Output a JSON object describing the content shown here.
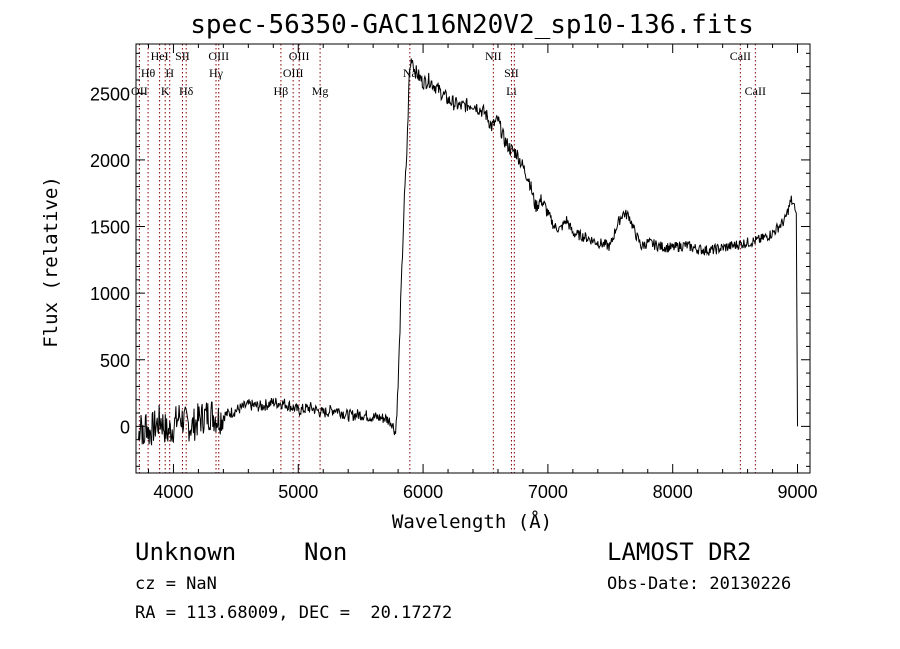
{
  "chart_data": {
    "type": "line",
    "title": "spec-56350-GAC116N20V2_sp10-136.fits",
    "xlabel": "Wavelength (Å)",
    "ylabel": "Flux (relative)",
    "xlim": [
      3700,
      9100
    ],
    "ylim": [
      -350,
      2870
    ],
    "x_ticks": [
      4000,
      5000,
      6000,
      7000,
      8000,
      9000
    ],
    "x_tick_labels": [
      "4000",
      "5000",
      "6000",
      "7000",
      "8000",
      "9000"
    ],
    "y_ticks": [
      0,
      500,
      1000,
      1500,
      2000,
      2500
    ],
    "y_tick_labels": [
      "0",
      "500",
      "1000",
      "1500",
      "2000",
      "2500"
    ],
    "grid": false,
    "legend": "none",
    "line_color": "#000000",
    "marker_color": "#8b0000",
    "series": [
      {
        "x": [
          3720,
          3740,
          3760,
          3780,
          3800,
          3850,
          3900,
          3950,
          4000,
          4050,
          4100,
          4150,
          4200,
          4300,
          4350,
          4400,
          4500,
          4600,
          4700,
          4800,
          4900,
          5000,
          5100,
          5200,
          5300,
          5400,
          5500,
          5600,
          5700,
          5750,
          5780,
          5800,
          5820,
          5850,
          5870,
          5890,
          5910,
          5930,
          5950,
          6000,
          6050,
          6100,
          6150,
          6200,
          6300,
          6400,
          6500,
          6550,
          6600,
          6650,
          6700,
          6750,
          6800,
          6850,
          6900,
          6950,
          7000,
          7050,
          7100,
          7150,
          7200,
          7300,
          7400,
          7500,
          7550,
          7600,
          7650,
          7700,
          7750,
          7800,
          7900,
          8000,
          8100,
          8200,
          8300,
          8400,
          8500,
          8600,
          8700,
          8800,
          8900,
          8950,
          8990,
          9000
        ],
        "y": [
          -100,
          100,
          -150,
          50,
          -50,
          0,
          50,
          -50,
          0,
          80,
          20,
          0,
          50,
          100,
          60,
          80,
          120,
          160,
          150,
          180,
          170,
          120,
          140,
          100,
          130,
          80,
          90,
          70,
          60,
          30,
          -50,
          300,
          900,
          1700,
          2050,
          2650,
          2780,
          2680,
          2650,
          2580,
          2600,
          2550,
          2500,
          2450,
          2400,
          2420,
          2350,
          2250,
          2300,
          2150,
          2080,
          2050,
          1950,
          1850,
          1650,
          1700,
          1600,
          1500,
          1480,
          1550,
          1450,
          1420,
          1380,
          1350,
          1500,
          1600,
          1580,
          1450,
          1350,
          1380,
          1350,
          1340,
          1360,
          1330,
          1320,
          1340,
          1360,
          1380,
          1400,
          1450,
          1550,
          1700,
          1600,
          0
        ]
      }
    ],
    "line_markers": [
      {
        "x": 3727,
        "labels": [
          "OII"
        ]
      },
      {
        "x": 3797,
        "labels": [
          "Hθ"
        ]
      },
      {
        "x": 3889,
        "labels": [
          "HeI"
        ]
      },
      {
        "x": 3934,
        "labels": [
          "K"
        ]
      },
      {
        "x": 3970,
        "labels": [
          "H"
        ]
      },
      {
        "x": 4072,
        "labels": [
          "SII"
        ]
      },
      {
        "x": 4102,
        "labels": [
          "Hδ"
        ]
      },
      {
        "x": 4341,
        "labels": [
          "Hγ"
        ]
      },
      {
        "x": 4363,
        "labels": [
          "OIII"
        ]
      },
      {
        "x": 4861,
        "labels": [
          "Hβ"
        ]
      },
      {
        "x": 4959,
        "labels": [
          "OIII"
        ]
      },
      {
        "x": 5007,
        "labels": [
          "OIII"
        ]
      },
      {
        "x": 5175,
        "labels": [
          "Mg"
        ]
      },
      {
        "x": 5894,
        "labels": [
          "Na"
        ]
      },
      {
        "x": 6563,
        "labels": [
          "NII"
        ]
      },
      {
        "x": 6708,
        "labels": [
          "SII",
          "Li"
        ]
      },
      {
        "x": 6731,
        "labels": []
      },
      {
        "x": 8542,
        "labels": [
          "CaII"
        ]
      },
      {
        "x": 8662,
        "labels": [
          "CaII"
        ]
      }
    ]
  },
  "info": {
    "object_class": "Unknown",
    "subclass": "Non",
    "cz": "cz = NaN",
    "coords": "RA = 113.68009, DEC =  20.17272",
    "survey": "LAMOST DR2",
    "obs_date": "Obs-Date: 20130226"
  }
}
